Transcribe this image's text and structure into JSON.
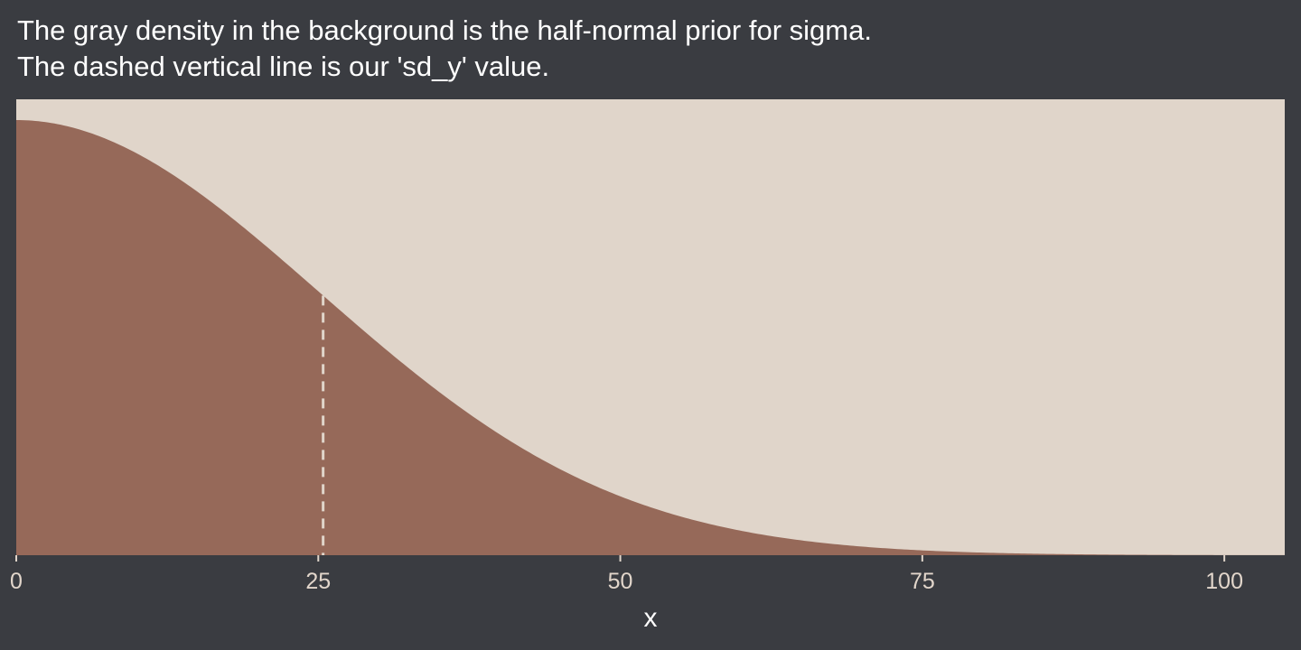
{
  "title": {
    "line1": "The gray density in the background is the half-normal prior for sigma.",
    "line2": "The dashed vertical line is our 'sd_y' value."
  },
  "colors": {
    "background": "#3a3c41",
    "panel": "#e0d5ca",
    "density_fill": "#966959",
    "reference_line": "#e0d5ca",
    "tick_text": "#e2d6cb",
    "title_text": "#ffffff"
  },
  "chart_data": {
    "type": "area",
    "description_of_curve": "half-normal density",
    "distribution": {
      "family": "half-normal",
      "sigma": 25
    },
    "x": [
      0,
      5,
      10,
      15,
      20,
      25,
      30,
      35,
      40,
      45,
      50,
      55,
      60,
      65,
      70,
      75,
      80,
      85,
      90,
      95,
      100,
      105
    ],
    "y_relative": [
      1.0,
      0.98,
      0.923,
      0.835,
      0.726,
      0.607,
      0.487,
      0.375,
      0.278,
      0.198,
      0.135,
      0.089,
      0.056,
      0.034,
      0.02,
      0.011,
      0.006,
      0.003,
      0.0015,
      0.0007,
      0.0003,
      0.0001
    ],
    "reference_line": {
      "x": 25.4,
      "style": "dashed"
    },
    "xlabel": "x",
    "ylabel": "",
    "xlim": [
      0,
      105
    ],
    "x_ticks": [
      0,
      25,
      50,
      75,
      100
    ],
    "x_tick_labels": [
      "0",
      "25",
      "50",
      "75",
      "100"
    ],
    "y_axis_shown": false,
    "grid": false,
    "legend": "none"
  }
}
